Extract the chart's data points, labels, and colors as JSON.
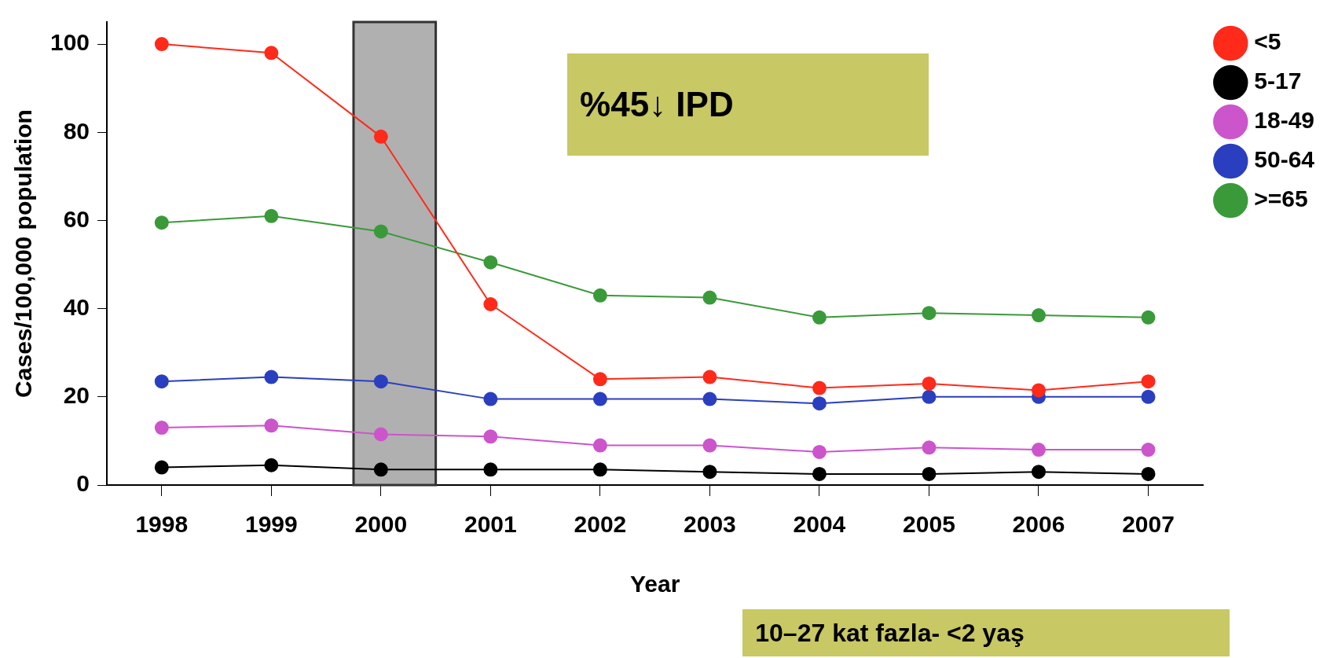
{
  "chart_data": {
    "type": "line",
    "xlabel": "Year",
    "ylabel": "Cases/100,000 population",
    "x": [
      1998,
      1999,
      2000,
      2001,
      2002,
      2003,
      2004,
      2005,
      2006,
      2007
    ],
    "xlim": [
      1997.5,
      2007.5
    ],
    "xticks": [
      1998,
      1999,
      2000,
      2001,
      2002,
      2003,
      2004,
      2005,
      2006,
      2007
    ],
    "ylim": [
      0,
      105
    ],
    "yticks": [
      0,
      20,
      40,
      60,
      80,
      100
    ],
    "series": [
      {
        "name": "<5",
        "color": "#ff2a1a",
        "values": [
          100,
          98,
          79,
          41,
          24,
          24.5,
          22,
          23,
          21.5,
          23.5
        ]
      },
      {
        "name": "5-17",
        "color": "#000000",
        "values": [
          4,
          4.5,
          3.5,
          3.5,
          3.5,
          3,
          2.5,
          2.5,
          3,
          2.5
        ]
      },
      {
        "name": "18-49",
        "color": "#cc55cc",
        "values": [
          13,
          13.5,
          11.5,
          11,
          9,
          9,
          7.5,
          8.5,
          8,
          8
        ]
      },
      {
        "name": "50-64",
        "color": "#2a3fc0",
        "values": [
          23.5,
          24.5,
          23.5,
          19.5,
          19.5,
          19.5,
          18.5,
          20,
          20,
          20
        ]
      },
      {
        "name": ">=65",
        "color": "#3a9a3a",
        "values": [
          59.5,
          61,
          57.5,
          50.5,
          43,
          42.5,
          38,
          39,
          38.5,
          38
        ]
      }
    ],
    "bands": [
      {
        "axis": "x",
        "from": 1999.75,
        "to": 2000.5,
        "color": "#b0b0b0"
      }
    ],
    "annotations": [
      "%45↓ IPD",
      "10–27 kat  fazla- <2 yaş"
    ],
    "legend": "top right",
    "marker": "circle",
    "line_style": "solid",
    "grid": false
  }
}
